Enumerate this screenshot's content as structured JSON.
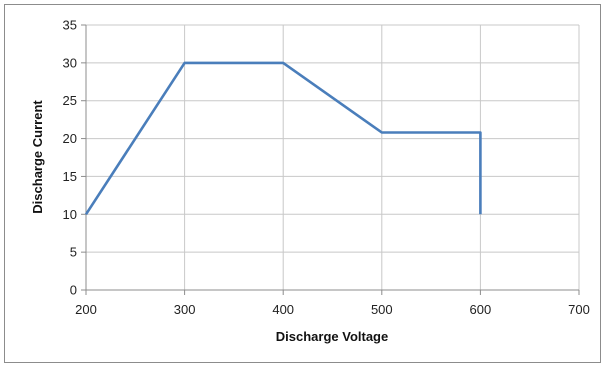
{
  "chart_data": {
    "type": "line",
    "title": "",
    "xlabel": "Discharge Voltage",
    "ylabel": "Discharge Current",
    "xlim": [
      200,
      700
    ],
    "ylim": [
      0,
      35
    ],
    "x_ticks": [
      "200",
      "300",
      "400",
      "500",
      "600",
      "700"
    ],
    "y_ticks": [
      "0",
      "5",
      "10",
      "15",
      "20",
      "25",
      "30",
      "35"
    ],
    "grid": true,
    "legend": "none",
    "series": [
      {
        "color": "#4a7ebb",
        "points": [
          {
            "x": 200,
            "y": 10
          },
          {
            "x": 300,
            "y": 30
          },
          {
            "x": 400,
            "y": 30
          },
          {
            "x": 500,
            "y": 20.8
          },
          {
            "x": 600,
            "y": 20.8
          },
          {
            "x": 600,
            "y": 10
          }
        ]
      }
    ]
  }
}
